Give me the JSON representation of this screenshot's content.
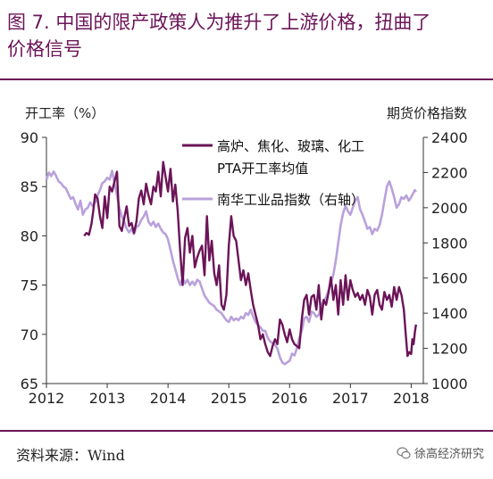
{
  "title_lines": [
    "图 7.  中国的限产政策人为推升了上游价格，扭曲了",
    "价格信号"
  ],
  "source": "资料来源：Wind",
  "watermark": "徐高经济研究",
  "colors": {
    "title": "#6b1458",
    "utilization": "#6b1458",
    "index": "#b9a1dc"
  },
  "chart_data": {
    "type": "line",
    "left_axis_label": "开工率（%）",
    "right_axis_label": "期货价格指数",
    "x_ticks": [
      "2012",
      "2013",
      "2014",
      "2015",
      "2016",
      "2017",
      "2018"
    ],
    "x_range": [
      2012,
      2018.2
    ],
    "y_left_range": [
      65,
      90
    ],
    "y_left_ticks": [
      65,
      70,
      75,
      80,
      85,
      90
    ],
    "y_right_range": [
      1000,
      2400
    ],
    "y_right_ticks": [
      1000,
      1200,
      1400,
      1600,
      1800,
      2000,
      2200,
      2400
    ],
    "legend": {
      "placement": "top-right"
    },
    "series": [
      {
        "name": "高炉、焦化、玻璃、化工PTA开工率均值",
        "axis": "left",
        "color": "#6b1458",
        "points": [
          [
            2012.62,
            80.0
          ],
          [
            2012.66,
            80.3
          ],
          [
            2012.7,
            80.1
          ],
          [
            2012.74,
            81.2
          ],
          [
            2012.77,
            82.5
          ],
          [
            2012.8,
            84.2
          ],
          [
            2012.84,
            83.8
          ],
          [
            2012.88,
            82.0
          ],
          [
            2012.92,
            80.8
          ],
          [
            2012.96,
            84.0
          ],
          [
            2013.0,
            81.8
          ],
          [
            2013.04,
            85.0
          ],
          [
            2013.08,
            84.5
          ],
          [
            2013.12,
            85.5
          ],
          [
            2013.16,
            86.5
          ],
          [
            2013.2,
            81.0
          ],
          [
            2013.24,
            80.5
          ],
          [
            2013.28,
            81.8
          ],
          [
            2013.32,
            83.0
          ],
          [
            2013.36,
            81.0
          ],
          [
            2013.4,
            81.3
          ],
          [
            2013.44,
            80.3
          ],
          [
            2013.48,
            81.4
          ],
          [
            2013.52,
            83.8
          ],
          [
            2013.56,
            84.6
          ],
          [
            2013.6,
            83.2
          ],
          [
            2013.64,
            85.3
          ],
          [
            2013.68,
            84.1
          ],
          [
            2013.72,
            83.2
          ],
          [
            2013.76,
            85.0
          ],
          [
            2013.8,
            84.5
          ],
          [
            2013.84,
            86.5
          ],
          [
            2013.88,
            84.0
          ],
          [
            2013.92,
            87.5
          ],
          [
            2013.96,
            86.0
          ],
          [
            2014.0,
            84.5
          ],
          [
            2014.04,
            86.8
          ],
          [
            2014.08,
            83.5
          ],
          [
            2014.12,
            85.2
          ],
          [
            2014.16,
            82.5
          ],
          [
            2014.2,
            78.5
          ],
          [
            2014.24,
            75.0
          ],
          [
            2014.28,
            79.8
          ],
          [
            2014.32,
            80.8
          ],
          [
            2014.36,
            78.3
          ],
          [
            2014.4,
            80.0
          ],
          [
            2014.44,
            76.8
          ],
          [
            2014.48,
            77.8
          ],
          [
            2014.52,
            78.5
          ],
          [
            2014.56,
            79.0
          ],
          [
            2014.6,
            76.0
          ],
          [
            2014.64,
            82.0
          ],
          [
            2014.68,
            77.5
          ],
          [
            2014.72,
            79.5
          ],
          [
            2014.76,
            76.2
          ],
          [
            2014.8,
            75.0
          ],
          [
            2014.84,
            77.0
          ],
          [
            2014.88,
            73.0
          ],
          [
            2014.92,
            72.5
          ],
          [
            2014.96,
            74.0
          ],
          [
            2015.0,
            79.0
          ],
          [
            2015.04,
            82.0
          ],
          [
            2015.08,
            80.0
          ],
          [
            2015.12,
            79.5
          ],
          [
            2015.16,
            77.5
          ],
          [
            2015.2,
            75.5
          ],
          [
            2015.24,
            76.5
          ],
          [
            2015.28,
            75.0
          ],
          [
            2015.32,
            76.2
          ],
          [
            2015.36,
            74.5
          ],
          [
            2015.4,
            73.0
          ],
          [
            2015.44,
            72.0
          ],
          [
            2015.48,
            71.0
          ],
          [
            2015.52,
            69.5
          ],
          [
            2015.56,
            70.0
          ],
          [
            2015.6,
            69.0
          ],
          [
            2015.64,
            68.2
          ],
          [
            2015.68,
            67.8
          ],
          [
            2015.72,
            68.8
          ],
          [
            2015.76,
            69.5
          ],
          [
            2015.8,
            69.0
          ],
          [
            2015.84,
            71.5
          ],
          [
            2015.88,
            71.0
          ],
          [
            2015.92,
            70.0
          ],
          [
            2015.96,
            69.2
          ],
          [
            2016.0,
            70.5
          ],
          [
            2016.04,
            69.5
          ],
          [
            2016.08,
            69.0
          ],
          [
            2016.12,
            68.8
          ],
          [
            2016.16,
            68.6
          ],
          [
            2016.2,
            71.5
          ],
          [
            2016.24,
            73.5
          ],
          [
            2016.28,
            74.0
          ],
          [
            2016.32,
            72.0
          ],
          [
            2016.36,
            73.8
          ],
          [
            2016.4,
            74.0
          ],
          [
            2016.44,
            72.5
          ],
          [
            2016.48,
            75.0
          ],
          [
            2016.52,
            71.5
          ],
          [
            2016.56,
            73.5
          ],
          [
            2016.6,
            73.0
          ],
          [
            2016.64,
            74.2
          ],
          [
            2016.68,
            75.8
          ],
          [
            2016.72,
            73.5
          ],
          [
            2016.76,
            75.0
          ],
          [
            2016.8,
            72.0
          ],
          [
            2016.84,
            75.5
          ],
          [
            2016.88,
            73.0
          ],
          [
            2016.92,
            76.0
          ],
          [
            2016.96,
            73.5
          ],
          [
            2017.0,
            75.5
          ],
          [
            2017.04,
            74.5
          ],
          [
            2017.08,
            73.8
          ],
          [
            2017.12,
            74.2
          ],
          [
            2017.16,
            73.5
          ],
          [
            2017.2,
            74.0
          ],
          [
            2017.24,
            73.0
          ],
          [
            2017.28,
            74.5
          ],
          [
            2017.32,
            73.8
          ],
          [
            2017.36,
            72.0
          ],
          [
            2017.4,
            74.0
          ],
          [
            2017.44,
            74.5
          ],
          [
            2017.48,
            73.0
          ],
          [
            2017.52,
            72.5
          ],
          [
            2017.56,
            74.3
          ],
          [
            2017.6,
            73.5
          ],
          [
            2017.64,
            74.0
          ],
          [
            2017.68,
            72.8
          ],
          [
            2017.72,
            74.8
          ],
          [
            2017.76,
            73.5
          ],
          [
            2017.8,
            74.8
          ],
          [
            2017.84,
            74.0
          ],
          [
            2017.88,
            72.5
          ],
          [
            2017.91,
            70.0
          ],
          [
            2017.94,
            67.8
          ],
          [
            2017.97,
            68.2
          ],
          [
            2018.0,
            68.0
          ],
          [
            2018.02,
            69.5
          ],
          [
            2018.04,
            69.0
          ],
          [
            2018.06,
            70.2
          ],
          [
            2018.08,
            71.0
          ]
        ]
      },
      {
        "name": "南华工业品指数（右轴）",
        "axis": "right",
        "color": "#b9a1dc",
        "points": [
          [
            2012.0,
            2160
          ],
          [
            2012.04,
            2200
          ],
          [
            2012.08,
            2180
          ],
          [
            2012.12,
            2205
          ],
          [
            2012.16,
            2180
          ],
          [
            2012.2,
            2150
          ],
          [
            2012.24,
            2140
          ],
          [
            2012.28,
            2120
          ],
          [
            2012.32,
            2110
          ],
          [
            2012.36,
            2080
          ],
          [
            2012.4,
            2050
          ],
          [
            2012.44,
            2060
          ],
          [
            2012.48,
            2020
          ],
          [
            2012.52,
            1990
          ],
          [
            2012.56,
            2040
          ],
          [
            2012.6,
            1960
          ],
          [
            2012.64,
            1990
          ],
          [
            2012.68,
            2000
          ],
          [
            2012.72,
            2030
          ],
          [
            2012.76,
            2010
          ],
          [
            2012.8,
            2030
          ],
          [
            2012.84,
            2070
          ],
          [
            2012.88,
            2100
          ],
          [
            2012.92,
            2140
          ],
          [
            2012.96,
            2150
          ],
          [
            2013.0,
            2170
          ],
          [
            2013.04,
            2160
          ],
          [
            2013.08,
            2210
          ],
          [
            2013.12,
            2140
          ],
          [
            2013.16,
            2070
          ],
          [
            2013.2,
            2000
          ],
          [
            2013.24,
            1950
          ],
          [
            2013.28,
            1920
          ],
          [
            2013.32,
            1880
          ],
          [
            2013.36,
            1860
          ],
          [
            2013.4,
            1880
          ],
          [
            2013.44,
            1850
          ],
          [
            2013.48,
            1890
          ],
          [
            2013.52,
            1900
          ],
          [
            2013.56,
            1930
          ],
          [
            2013.6,
            1950
          ],
          [
            2013.64,
            1980
          ],
          [
            2013.68,
            1920
          ],
          [
            2013.72,
            1900
          ],
          [
            2013.76,
            1920
          ],
          [
            2013.8,
            1890
          ],
          [
            2013.84,
            1910
          ],
          [
            2013.88,
            1880
          ],
          [
            2013.92,
            1860
          ],
          [
            2013.96,
            1850
          ],
          [
            2014.0,
            1820
          ],
          [
            2014.04,
            1760
          ],
          [
            2014.08,
            1700
          ],
          [
            2014.12,
            1650
          ],
          [
            2014.16,
            1600
          ],
          [
            2014.2,
            1560
          ],
          [
            2014.24,
            1600
          ],
          [
            2014.28,
            1570
          ],
          [
            2014.32,
            1590
          ],
          [
            2014.36,
            1560
          ],
          [
            2014.4,
            1580
          ],
          [
            2014.44,
            1560
          ],
          [
            2014.48,
            1590
          ],
          [
            2014.52,
            1580
          ],
          [
            2014.56,
            1540
          ],
          [
            2014.6,
            1500
          ],
          [
            2014.64,
            1480
          ],
          [
            2014.68,
            1460
          ],
          [
            2014.72,
            1450
          ],
          [
            2014.76,
            1440
          ],
          [
            2014.8,
            1420
          ],
          [
            2014.84,
            1410
          ],
          [
            2014.88,
            1400
          ],
          [
            2014.92,
            1380
          ],
          [
            2014.96,
            1360
          ],
          [
            2015.0,
            1350
          ],
          [
            2015.04,
            1380
          ],
          [
            2015.08,
            1360
          ],
          [
            2015.12,
            1370
          ],
          [
            2015.16,
            1360
          ],
          [
            2015.2,
            1380
          ],
          [
            2015.24,
            1370
          ],
          [
            2015.28,
            1400
          ],
          [
            2015.32,
            1390
          ],
          [
            2015.36,
            1420
          ],
          [
            2015.4,
            1380
          ],
          [
            2015.44,
            1350
          ],
          [
            2015.48,
            1330
          ],
          [
            2015.52,
            1320
          ],
          [
            2015.56,
            1300
          ],
          [
            2015.6,
            1300
          ],
          [
            2015.64,
            1260
          ],
          [
            2015.68,
            1240
          ],
          [
            2015.72,
            1230
          ],
          [
            2015.76,
            1220
          ],
          [
            2015.8,
            1200
          ],
          [
            2015.84,
            1150
          ],
          [
            2015.88,
            1120
          ],
          [
            2015.92,
            1110
          ],
          [
            2015.96,
            1120
          ],
          [
            2016.0,
            1130
          ],
          [
            2016.04,
            1170
          ],
          [
            2016.08,
            1160
          ],
          [
            2016.12,
            1200
          ],
          [
            2016.16,
            1260
          ],
          [
            2016.2,
            1300
          ],
          [
            2016.24,
            1370
          ],
          [
            2016.28,
            1380
          ],
          [
            2016.32,
            1350
          ],
          [
            2016.36,
            1410
          ],
          [
            2016.4,
            1400
          ],
          [
            2016.44,
            1380
          ],
          [
            2016.48,
            1390
          ],
          [
            2016.52,
            1440
          ],
          [
            2016.56,
            1470
          ],
          [
            2016.6,
            1490
          ],
          [
            2016.64,
            1530
          ],
          [
            2016.68,
            1570
          ],
          [
            2016.72,
            1620
          ],
          [
            2016.76,
            1700
          ],
          [
            2016.8,
            1800
          ],
          [
            2016.84,
            1900
          ],
          [
            2016.88,
            1970
          ],
          [
            2016.92,
            2010
          ],
          [
            2016.96,
            1980
          ],
          [
            2017.0,
            1960
          ],
          [
            2017.04,
            2000
          ],
          [
            2017.08,
            2040
          ],
          [
            2017.12,
            2060
          ],
          [
            2017.16,
            1990
          ],
          [
            2017.2,
            1960
          ],
          [
            2017.24,
            1920
          ],
          [
            2017.28,
            1880
          ],
          [
            2017.32,
            1890
          ],
          [
            2017.36,
            1850
          ],
          [
            2017.4,
            1880
          ],
          [
            2017.44,
            1870
          ],
          [
            2017.48,
            1900
          ],
          [
            2017.52,
            1960
          ],
          [
            2017.56,
            2040
          ],
          [
            2017.6,
            2120
          ],
          [
            2017.64,
            2150
          ],
          [
            2017.68,
            2110
          ],
          [
            2017.72,
            2060
          ],
          [
            2017.76,
            2000
          ],
          [
            2017.8,
            2020
          ],
          [
            2017.84,
            2060
          ],
          [
            2017.88,
            2050
          ],
          [
            2017.92,
            2070
          ],
          [
            2017.96,
            2040
          ],
          [
            2018.0,
            2060
          ],
          [
            2018.03,
            2080
          ],
          [
            2018.06,
            2100
          ],
          [
            2018.08,
            2090
          ]
        ]
      }
    ]
  }
}
